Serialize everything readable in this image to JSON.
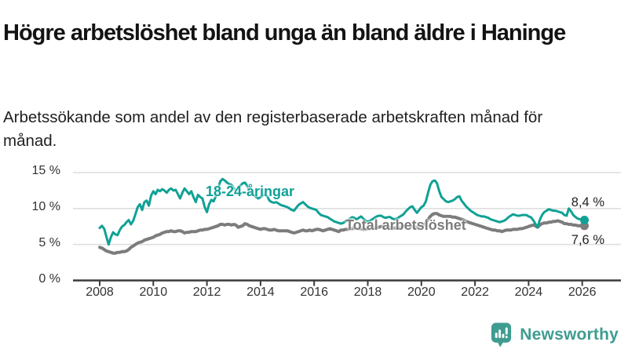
{
  "header": {
    "title": "Högre arbetslöshet bland unga än bland äldre i Haninge",
    "subtitle": "Arbetssökande som andel av den registerbaserade arbetskraften månad för månad."
  },
  "colors": {
    "young_line": "#10A195",
    "total_line": "#7C7C7C",
    "grid": "#DCDCDC",
    "axis": "#3B3B3B",
    "tick_text": "#333333",
    "brand_teal": "#3F9C90"
  },
  "footer": {
    "brand": "Newsworthy",
    "logo_icon": "bar-chart-speech-bubble"
  },
  "chart_data": {
    "type": "line",
    "title": "Högre arbetslöshet bland unga än bland äldre i Haninge",
    "subtitle": "Arbetssökande som andel av den registerbaserade arbetskraften månad för månad.",
    "unit": "%",
    "grid": "horizontal-only",
    "legend_position": "inline-labels",
    "ylim": [
      0,
      16.5
    ],
    "x_ticks": [
      2008,
      2010,
      2012,
      2014,
      2016,
      2018,
      2020,
      2022,
      2024,
      2026
    ],
    "y_ticks": [
      {
        "value": 0,
        "label": "0 %"
      },
      {
        "value": 5,
        "label": "5 %"
      },
      {
        "value": 10,
        "label": "10 %"
      },
      {
        "value": 15,
        "label": "15 %"
      }
    ],
    "x_start_year": 2008,
    "x_step_months": 1,
    "series": [
      {
        "name": "18-24-åringar",
        "color": "#10A195",
        "end_label": "8,4 %",
        "end_value": 8.4,
        "values": [
          7.3,
          7.6,
          7.2,
          6.1,
          5.0,
          6.0,
          6.7,
          6.4,
          6.3,
          7.0,
          7.5,
          7.7,
          8.1,
          8.4,
          7.8,
          8.3,
          9.2,
          10.2,
          10.6,
          9.8,
          10.9,
          11.1,
          10.4,
          11.8,
          12.4,
          12.0,
          12.6,
          12.4,
          12.7,
          12.5,
          12.2,
          12.6,
          12.8,
          12.5,
          12.6,
          12.0,
          11.4,
          12.2,
          12.8,
          12.4,
          12.0,
          12.4,
          11.6,
          10.9,
          11.9,
          11.6,
          11.4,
          10.2,
          9.5,
          10.6,
          11.2,
          11.0,
          11.7,
          12.8,
          13.8,
          14.1,
          13.9,
          13.6,
          13.4,
          13.3,
          12.8,
          12.5,
          12.9,
          13.2,
          13.5,
          13.6,
          13.2,
          12.6,
          12.2,
          11.9,
          11.6,
          11.4,
          11.6,
          11.8,
          12.0,
          11.7,
          11.1,
          10.9,
          10.8,
          10.9,
          10.7,
          10.5,
          10.4,
          10.3,
          10.2,
          10.0,
          9.8,
          9.7,
          10.1,
          10.5,
          10.7,
          10.9,
          10.6,
          10.3,
          10.1,
          10.0,
          9.9,
          9.8,
          9.4,
          9.1,
          9.0,
          8.9,
          8.8,
          8.6,
          8.4,
          8.2,
          8.1,
          8.0,
          7.9,
          8.0,
          8.2,
          8.4,
          8.6,
          8.8,
          8.7,
          8.5,
          8.7,
          8.9,
          8.6,
          8.3,
          8.2,
          8.3,
          8.5,
          8.7,
          8.9,
          9.0,
          9.0,
          8.8,
          8.7,
          8.8,
          8.8,
          8.6,
          8.5,
          8.6,
          8.8,
          9.0,
          9.2,
          9.6,
          9.9,
          10.2,
          10.3,
          9.8,
          9.4,
          9.8,
          10.2,
          10.4,
          11.0,
          12.2,
          13.3,
          13.8,
          13.9,
          13.5,
          12.4,
          11.6,
          11.3,
          11.0,
          10.9,
          11.0,
          11.1,
          11.3,
          11.6,
          11.7,
          11.1,
          10.7,
          10.3,
          10.0,
          9.7,
          9.5,
          9.3,
          9.1,
          9.0,
          8.9,
          8.9,
          8.8,
          8.7,
          8.5,
          8.4,
          8.3,
          8.2,
          8.1,
          8.2,
          8.3,
          8.5,
          8.8,
          9.0,
          9.2,
          9.1,
          9.0,
          9.0,
          9.1,
          9.1,
          9.1,
          8.9,
          8.8,
          8.4,
          7.9,
          7.4,
          8.4,
          9.1,
          9.5,
          9.7,
          9.9,
          9.8,
          9.7,
          9.7,
          9.6,
          9.5,
          9.4,
          9.1,
          9.0,
          10.0,
          9.6,
          9.1,
          8.8,
          8.6,
          8.5,
          8.4,
          8.4
        ]
      },
      {
        "name": "Total arbetslöshet",
        "color": "#7C7C7C",
        "end_label": "7,6 %",
        "end_value": 7.6,
        "values": [
          4.6,
          4.5,
          4.3,
          4.1,
          4.0,
          3.9,
          3.8,
          3.8,
          3.9,
          3.9,
          4.0,
          4.0,
          4.1,
          4.3,
          4.6,
          4.8,
          5.0,
          5.2,
          5.3,
          5.4,
          5.6,
          5.7,
          5.8,
          5.9,
          6.0,
          6.2,
          6.3,
          6.4,
          6.6,
          6.7,
          6.8,
          6.8,
          6.9,
          6.8,
          6.8,
          6.9,
          6.9,
          6.8,
          6.6,
          6.7,
          6.7,
          6.8,
          6.8,
          6.8,
          6.9,
          7.0,
          7.0,
          7.1,
          7.1,
          7.2,
          7.3,
          7.4,
          7.5,
          7.6,
          7.8,
          7.8,
          7.7,
          7.8,
          7.8,
          7.7,
          7.8,
          7.7,
          7.4,
          7.5,
          7.6,
          7.9,
          7.8,
          7.6,
          7.5,
          7.4,
          7.3,
          7.2,
          7.1,
          7.2,
          7.2,
          7.1,
          7.0,
          7.0,
          7.1,
          7.0,
          6.9,
          6.9,
          6.9,
          6.9,
          6.9,
          6.8,
          6.7,
          6.6,
          6.7,
          6.8,
          6.9,
          7.0,
          6.9,
          6.9,
          7.0,
          6.9,
          7.0,
          7.1,
          7.1,
          7.0,
          6.9,
          7.0,
          7.1,
          7.2,
          7.1,
          7.0,
          6.9,
          6.8,
          7.0,
          7.0,
          7.1,
          7.1,
          7.2,
          7.2,
          7.3,
          7.3,
          7.2,
          7.2,
          7.1,
          7.1,
          7.2,
          7.2,
          7.3,
          7.3,
          7.4,
          7.4,
          7.5,
          7.5,
          7.4,
          7.4,
          7.3,
          7.3,
          7.3,
          7.3,
          7.4,
          7.4,
          7.5,
          7.5,
          7.6,
          7.6,
          7.5,
          7.4,
          7.4,
          7.5,
          7.6,
          7.7,
          8.0,
          8.5,
          8.9,
          9.2,
          9.3,
          9.3,
          9.1,
          9.0,
          8.9,
          8.9,
          8.9,
          8.9,
          8.8,
          8.8,
          8.7,
          8.6,
          8.5,
          8.4,
          8.2,
          8.1,
          8.0,
          7.9,
          7.8,
          7.7,
          7.6,
          7.5,
          7.4,
          7.3,
          7.2,
          7.1,
          7.0,
          7.0,
          6.9,
          6.9,
          6.8,
          6.9,
          7.0,
          7.0,
          7.0,
          7.1,
          7.1,
          7.1,
          7.2,
          7.2,
          7.3,
          7.4,
          7.5,
          7.6,
          7.7,
          7.6,
          7.4,
          7.7,
          7.9,
          8.0,
          8.0,
          8.1,
          8.1,
          8.2,
          8.2,
          8.3,
          8.2,
          8.1,
          7.9,
          7.9,
          7.8,
          7.8,
          7.7,
          7.7,
          7.6,
          7.6,
          7.6,
          7.6
        ]
      }
    ]
  }
}
